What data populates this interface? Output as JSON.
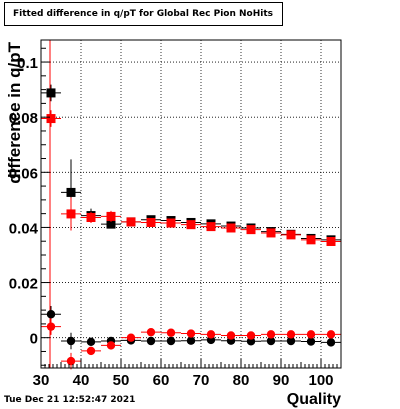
{
  "title": "Fitted difference in q/pT for Global Rec Pion NoHits",
  "timestamp": "Tue Dec 21 12:52:47 2021",
  "chart_data": {
    "type": "scatter",
    "xlabel": "Quality",
    "ylabel": "difference in q/pT",
    "xlim": [
      30,
      105
    ],
    "ylim": [
      -0.011,
      0.108
    ],
    "xticks": [
      30,
      40,
      50,
      60,
      70,
      80,
      90,
      100
    ],
    "yticks": [
      0,
      0.02,
      0.04,
      0.06,
      0.08,
      0.1
    ],
    "ytick_labels": [
      "0",
      "0.02",
      "0.04",
      "0.06",
      "0.08",
      "0.1"
    ],
    "grid": true,
    "x_bin_half_width": 2.5,
    "series": [
      {
        "marker": "square",
        "color": "#000000",
        "x": [
          32.5,
          37.5,
          42.5,
          47.5,
          52.5,
          57.5,
          62.5,
          67.5,
          72.5,
          77.5,
          82.5,
          87.5,
          92.5,
          97.5,
          102.5
        ],
        "y": [
          0.0888,
          0.0527,
          0.0443,
          0.0412,
          0.042,
          0.0428,
          0.0425,
          0.0418,
          0.0413,
          0.0405,
          0.0398,
          0.0385,
          0.0375,
          0.036,
          0.0355
        ],
        "yerr": [
          0.003,
          0.012,
          0.0025,
          0.001,
          0.001,
          0.001,
          0.001,
          0.001,
          0.001,
          0.001,
          0.001,
          0.001,
          0.001,
          0.001,
          0.001
        ]
      },
      {
        "marker": "square",
        "color": "#ff0000",
        "x": [
          32.5,
          37.5,
          42.5,
          47.5,
          52.5,
          57.5,
          62.5,
          67.5,
          72.5,
          77.5,
          82.5,
          87.5,
          92.5,
          97.5,
          102.5
        ],
        "y": [
          0.0795,
          0.0449,
          0.0436,
          0.044,
          0.042,
          0.0418,
          0.0416,
          0.041,
          0.0403,
          0.0398,
          0.0392,
          0.038,
          0.0373,
          0.0355,
          0.0349
        ],
        "yerr": [
          0.003,
          0.006,
          0.002,
          0.002,
          0.001,
          0.001,
          0.001,
          0.001,
          0.001,
          0.001,
          0.001,
          0.001,
          0.001,
          0.001,
          0.001
        ]
      },
      {
        "marker": "circle",
        "color": "#000000",
        "x": [
          32.5,
          37.5,
          42.5,
          47.5,
          52.5,
          57.5,
          62.5,
          67.5,
          72.5,
          77.5,
          82.5,
          87.5,
          92.5,
          97.5,
          102.5
        ],
        "y": [
          0.0085,
          -0.0012,
          -0.0015,
          -0.0012,
          -0.001,
          -0.0012,
          -0.0012,
          -0.0011,
          -0.0008,
          -0.0011,
          -0.0013,
          -0.0012,
          -0.0012,
          -0.0014,
          -0.0017
        ],
        "yerr": [
          0.003,
          0.003,
          0.0015,
          0.001,
          0.0008,
          0.0008,
          0.0008,
          0.0008,
          0.0008,
          0.0008,
          0.0008,
          0.0008,
          0.0008,
          0.0008,
          0.0008
        ]
      },
      {
        "marker": "circle",
        "color": "#ff0000",
        "x": [
          32.5,
          37.5,
          42.5,
          47.5,
          52.5,
          57.5,
          62.5,
          67.5,
          72.5,
          77.5,
          82.5,
          87.5,
          92.5,
          97.5,
          102.5
        ],
        "y": [
          0.004,
          -0.0085,
          -0.0048,
          -0.0028,
          0.0,
          0.002,
          0.0018,
          0.0015,
          0.0012,
          0.0008,
          0.0008,
          0.0012,
          0.0012,
          0.0012,
          0.0012
        ],
        "yerr": [
          0.003,
          0.003,
          0.0015,
          0.001,
          0.0008,
          0.0008,
          0.0008,
          0.0008,
          0.0008,
          0.0008,
          0.0008,
          0.0008,
          0.0008,
          0.0008,
          0.0008
        ]
      }
    ]
  }
}
